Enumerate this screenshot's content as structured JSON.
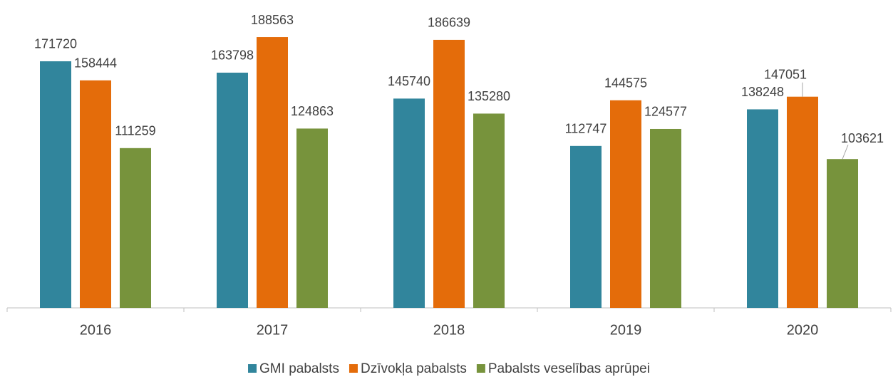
{
  "chart_data": {
    "type": "bar",
    "categories": [
      "2016",
      "2017",
      "2018",
      "2019",
      "2020"
    ],
    "series": [
      {
        "name": "GMI pabalsts",
        "color": "#31859c",
        "values": [
          171720,
          163798,
          145740,
          112747,
          138248
        ]
      },
      {
        "name": "Dzīvokļa pabalsts",
        "color": "#e46c0a",
        "values": [
          158444,
          188563,
          186639,
          144575,
          147051
        ]
      },
      {
        "name": "Pabalsts veselības aprūpei",
        "color": "#77933c",
        "values": [
          111259,
          124863,
          135280,
          124577,
          103621
        ]
      }
    ],
    "ylim": [
      0,
      200000
    ],
    "grid": false
  }
}
